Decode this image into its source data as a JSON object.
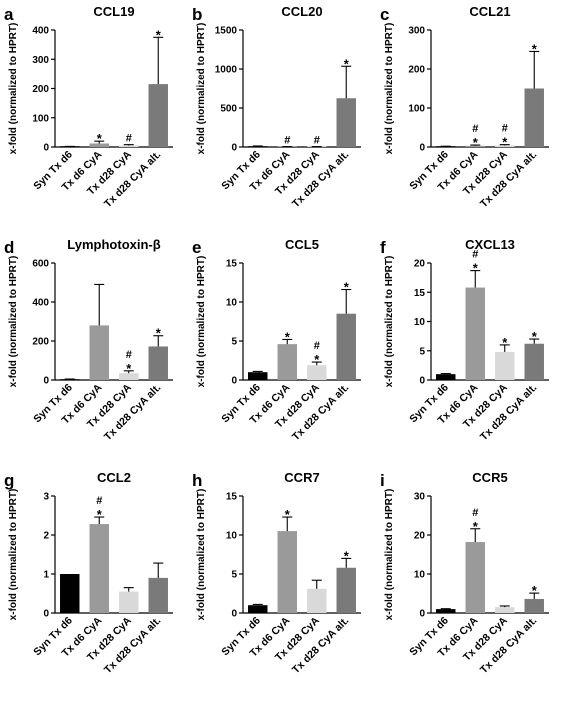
{
  "ylabel": "x-fold (normalized to HPRT)",
  "colors": {
    "syn": "#000000",
    "d6": "#9a9a9a",
    "d28": "#d9d9d9",
    "d28alt": "#7a7a7a",
    "axis": "#000000",
    "errorbar": "#000000"
  },
  "chart_data": [
    {
      "type": "bar",
      "panel": "a",
      "title": "CCL19",
      "categories": [
        "Syn Tx d6",
        "Tx d6 CyA",
        "Tx d28 CyA",
        "Tx d28 CyA alt."
      ],
      "values": [
        1,
        12,
        5,
        215
      ],
      "errors": [
        1,
        8,
        3,
        160
      ],
      "ylim": [
        0,
        400
      ],
      "yticks": [
        0,
        100,
        200,
        300,
        400
      ],
      "marks": [
        "",
        "*",
        "#",
        "*"
      ],
      "show_xlabels": true
    },
    {
      "type": "bar",
      "panel": "b",
      "title": "CCL20",
      "categories": [
        "Syn Tx d6",
        "Tx d6 CyA",
        "Tx d28 CyA",
        "Tx d28 CyA alt."
      ],
      "values": [
        8,
        3,
        3,
        625
      ],
      "errors": [
        5,
        2,
        2,
        410
      ],
      "ylim": [
        0,
        1500
      ],
      "yticks": [
        0,
        500,
        1000,
        1500
      ],
      "marks": [
        "",
        "#",
        "#",
        "*"
      ],
      "show_xlabels": true
    },
    {
      "type": "bar",
      "panel": "c",
      "title": "CCL21",
      "categories": [
        "Syn Tx d6",
        "Tx d6 CyA",
        "Tx d28 CyA",
        "Tx d28 CyA alt."
      ],
      "values": [
        1,
        3,
        4,
        150
      ],
      "errors": [
        1,
        2,
        2,
        95
      ],
      "ylim": [
        0,
        300
      ],
      "yticks": [
        0,
        100,
        200,
        300
      ],
      "marks": [
        "",
        "#\n*",
        "#\n*",
        "*"
      ],
      "show_xlabels": true
    },
    {
      "type": "bar",
      "panel": "d",
      "title": "Lymphotoxin-β",
      "categories": [
        "Syn Tx d6",
        "Tx d6 CyA",
        "Tx d28 CyA",
        "Tx d28 CyA alt."
      ],
      "values": [
        3,
        280,
        35,
        172
      ],
      "errors": [
        2,
        210,
        12,
        55
      ],
      "ylim": [
        0,
        600
      ],
      "yticks": [
        0,
        200,
        400,
        600
      ],
      "marks": [
        "",
        "",
        "#\n*",
        "*"
      ],
      "show_xlabels": true
    },
    {
      "type": "bar",
      "panel": "e",
      "title": "CCL5",
      "categories": [
        "Syn Tx d6",
        "Tx d6 CyA",
        "Tx d28 CyA",
        "Tx d28 CyA alt."
      ],
      "values": [
        1,
        4.6,
        1.9,
        8.5
      ],
      "errors": [
        0.1,
        0.6,
        0.4,
        3.1
      ],
      "ylim": [
        0,
        15
      ],
      "yticks": [
        0,
        5,
        10,
        15
      ],
      "marks": [
        "",
        "*",
        "#\n*",
        "*"
      ],
      "show_xlabels": true
    },
    {
      "type": "bar",
      "panel": "f",
      "title": "CXCL13",
      "categories": [
        "Syn Tx d6",
        "Tx d6 CyA",
        "Tx d28 CyA",
        "Tx d28 CyA alt."
      ],
      "values": [
        1,
        15.8,
        4.8,
        6.2
      ],
      "errors": [
        0.1,
        2.9,
        1.2,
        0.8
      ],
      "ylim": [
        0,
        20
      ],
      "yticks": [
        0,
        5,
        10,
        15,
        20
      ],
      "marks": [
        "",
        "#\n*",
        "*",
        "*"
      ],
      "show_xlabels": true
    },
    {
      "type": "bar",
      "panel": "g",
      "title": "CCL2",
      "categories": [
        "Syn Tx d6",
        "Tx d6 CyA",
        "Tx d28 CyA",
        "Tx d28 CyA alt."
      ],
      "values": [
        1,
        2.28,
        0.55,
        0.9
      ],
      "errors": [
        0,
        0.18,
        0.1,
        0.38
      ],
      "ylim": [
        0,
        3
      ],
      "yticks": [
        0,
        1,
        2,
        3
      ],
      "marks": [
        "",
        "#\n*",
        "",
        ""
      ],
      "show_xlabels": true
    },
    {
      "type": "bar",
      "panel": "h",
      "title": "CCR7",
      "categories": [
        "Syn Tx d6",
        "Tx d6 CyA",
        "Tx d28 CyA",
        "Tx d28 CyA alt."
      ],
      "values": [
        1,
        10.5,
        3.1,
        5.8
      ],
      "errors": [
        0.1,
        1.8,
        1.1,
        1.2
      ],
      "ylim": [
        0,
        15
      ],
      "yticks": [
        0,
        5,
        10,
        15
      ],
      "marks": [
        "",
        "*",
        "",
        "*"
      ],
      "show_xlabels": true
    },
    {
      "type": "bar",
      "panel": "i",
      "title": "CCR5",
      "categories": [
        "Syn Tx d6",
        "Tx d6 CyA",
        "Tx d28 CyA",
        "Tx d28 CyA alt."
      ],
      "values": [
        1,
        18.2,
        1.5,
        3.6
      ],
      "errors": [
        0.1,
        3.4,
        0.3,
        1.5
      ],
      "ylim": [
        0,
        30
      ],
      "yticks": [
        0,
        10,
        20,
        30
      ],
      "marks": [
        "",
        "#\n*",
        "",
        "*"
      ],
      "show_xlabels": true
    }
  ]
}
